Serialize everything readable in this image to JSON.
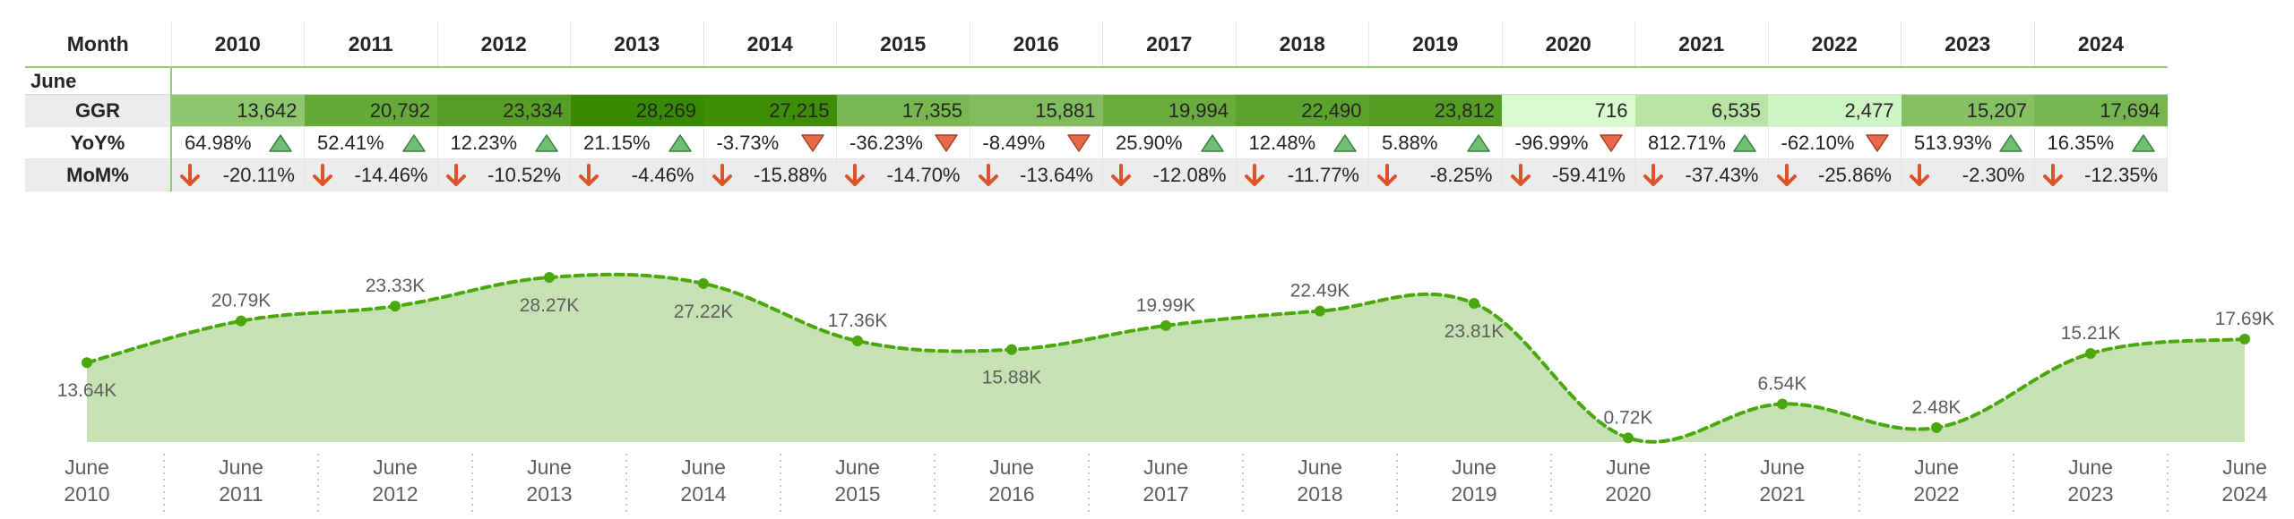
{
  "matrix": {
    "corner_header": "Month",
    "group_label": "June",
    "years": [
      "2010",
      "2011",
      "2012",
      "2013",
      "2014",
      "2015",
      "2016",
      "2017",
      "2018",
      "2019",
      "2020",
      "2021",
      "2022",
      "2023",
      "2024"
    ],
    "rows": {
      "ggr": {
        "label": "GGR",
        "values": [
          "13,642",
          "20,792",
          "23,334",
          "28,269",
          "27,215",
          "17,355",
          "15,881",
          "19,994",
          "22,490",
          "23,812",
          "716",
          "6,535",
          "2,477",
          "15,207",
          "17,694"
        ],
        "raw": [
          13642,
          20792,
          23334,
          28269,
          27215,
          17355,
          15881,
          19994,
          22490,
          23812,
          716,
          6535,
          2477,
          15207,
          17694
        ]
      },
      "yoy": {
        "label": "YoY%",
        "values": [
          "64.98%",
          "52.41%",
          "12.23%",
          "21.15%",
          "-3.73%",
          "-36.23%",
          "-8.49%",
          "25.90%",
          "12.48%",
          "5.88%",
          "-96.99%",
          "812.71%",
          "-62.10%",
          "513.93%",
          "16.35%"
        ],
        "directions": [
          "up",
          "up",
          "up",
          "up",
          "down",
          "down",
          "down",
          "up",
          "up",
          "up",
          "down",
          "up",
          "down",
          "up",
          "up"
        ]
      },
      "mom": {
        "label": "MoM%",
        "values": [
          "-20.11%",
          "-14.46%",
          "-10.52%",
          "-4.46%",
          "-15.88%",
          "-14.70%",
          "-13.64%",
          "-12.08%",
          "-11.77%",
          "-8.25%",
          "-59.41%",
          "-37.43%",
          "-25.86%",
          "-2.30%",
          "-12.35%"
        ],
        "directions": [
          "down",
          "down",
          "down",
          "down",
          "down",
          "down",
          "down",
          "down",
          "down",
          "down",
          "down",
          "down",
          "down",
          "down",
          "down"
        ]
      }
    },
    "colors": {
      "up_triangle": "#6fbf73",
      "down_triangle": "#e8684a",
      "down_arrow": "#d9542b",
      "scale_low": "#d9fbd0",
      "scale_high": "#3a8a00"
    }
  },
  "chart_data": {
    "type": "area",
    "title": "",
    "categories": [
      "June 2010",
      "June 2011",
      "June 2012",
      "June 2013",
      "June 2014",
      "June 2015",
      "June 2016",
      "June 2017",
      "June 2018",
      "June 2019",
      "June 2020",
      "June 2021",
      "June 2022",
      "June 2023",
      "June 2024"
    ],
    "axis_month": "June",
    "axis_years": [
      "2010",
      "2011",
      "2012",
      "2013",
      "2014",
      "2015",
      "2016",
      "2017",
      "2018",
      "2019",
      "2020",
      "2021",
      "2022",
      "2023",
      "2024"
    ],
    "series": [
      {
        "name": "GGR",
        "values": [
          13642,
          20792,
          23334,
          28269,
          27215,
          17355,
          15881,
          19994,
          22490,
          23812,
          716,
          6535,
          2477,
          15207,
          17694
        ],
        "labels": [
          "13.64K",
          "20.79K",
          "23.33K",
          "28.27K",
          "27.22K",
          "17.36K",
          "15.88K",
          "19.99K",
          "22.49K",
          "23.81K",
          "0.72K",
          "6.54K",
          "2.48K",
          "15.21K",
          "17.69K"
        ],
        "label_position": [
          "below",
          "above",
          "above",
          "below",
          "below",
          "above",
          "below",
          "above",
          "above",
          "below",
          "above",
          "above",
          "above",
          "above",
          "above"
        ]
      }
    ],
    "ylim": [
      0,
      29500
    ],
    "xlabel": "",
    "ylabel": "",
    "colors": {
      "line": "#4aa80c",
      "fill": "#c6e2b4",
      "marker": "#4aa80c"
    }
  }
}
